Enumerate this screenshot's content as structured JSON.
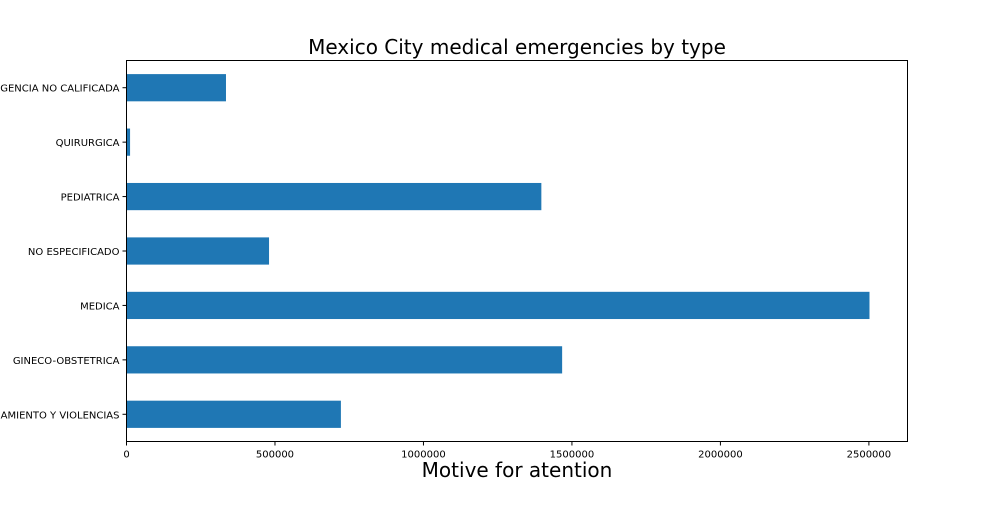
{
  "chart_data": {
    "type": "bar",
    "orientation": "horizontal",
    "title": "Mexico City medical emergencies by type",
    "xlabel": "Motive for atention",
    "ylabel": "",
    "categories": [
      "URGENCIA NO CALIFICADA",
      "QUIRURGICA",
      "PEDIATRICA",
      "NO ESPECIFICADO",
      "MEDICA",
      "GINECO-OBSTETRICA",
      "ENVENENAMIENTO Y VIOLENCIAS"
    ],
    "values": [
      335000,
      12000,
      1397000,
      480000,
      2502000,
      1467000,
      722000
    ],
    "xlim": [
      0,
      2630000
    ],
    "xticks": [
      0,
      500000,
      1000000,
      1500000,
      2000000,
      2500000
    ],
    "xtick_labels": [
      "0",
      "500000",
      "1000000",
      "1500000",
      "2000000",
      "2500000"
    ],
    "grid": false,
    "bar_color": "#1f77b4"
  }
}
